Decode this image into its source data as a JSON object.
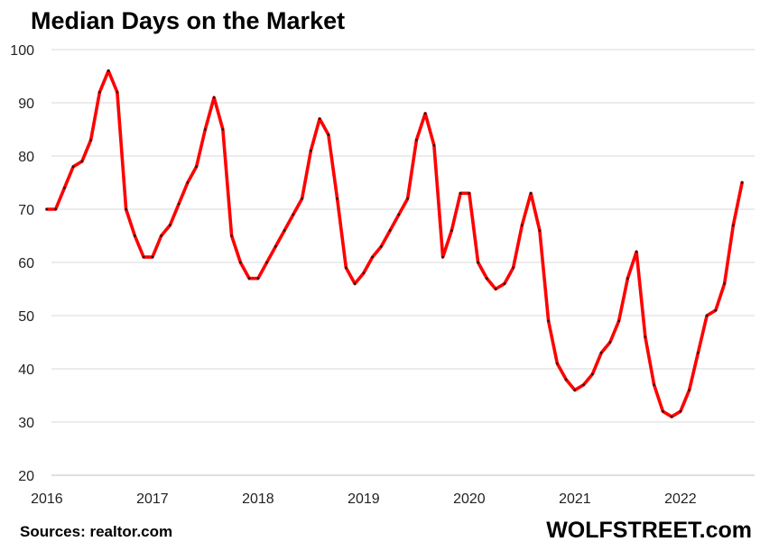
{
  "title": "Median Days on the Market",
  "source": "Sources: realtor.com",
  "brand": "WOLFSTREET.com",
  "colors": {
    "line": "#ff0000",
    "marker": "#1a1a1a",
    "grid": "#d9d9d9",
    "axis": "#bfbfbf"
  },
  "chart_data": {
    "type": "line",
    "title": "Median Days on the Market",
    "xlabel": "",
    "ylabel": "",
    "ylim": [
      20,
      100
    ],
    "yticks": [
      20,
      30,
      40,
      50,
      60,
      70,
      80,
      90,
      100
    ],
    "xticks": [
      "2016",
      "2017",
      "2018",
      "2019",
      "2020",
      "2021",
      "2022"
    ],
    "grid": "horizontal",
    "legend": "none",
    "x": [
      "2016-01",
      "2016-02",
      "2016-03",
      "2016-04",
      "2016-05",
      "2016-06",
      "2016-07",
      "2016-08",
      "2016-09",
      "2016-10",
      "2016-11",
      "2016-12",
      "2017-01",
      "2017-02",
      "2017-03",
      "2017-04",
      "2017-05",
      "2017-06",
      "2017-07",
      "2017-08",
      "2017-09",
      "2017-10",
      "2017-11",
      "2017-12",
      "2018-01",
      "2018-02",
      "2018-03",
      "2018-04",
      "2018-05",
      "2018-06",
      "2018-07",
      "2018-08",
      "2018-09",
      "2018-10",
      "2018-11",
      "2018-12",
      "2019-01",
      "2019-02",
      "2019-03",
      "2019-04",
      "2019-05",
      "2019-06",
      "2019-07",
      "2019-08",
      "2019-09",
      "2019-10",
      "2019-11",
      "2019-12",
      "2020-01",
      "2020-02",
      "2020-03",
      "2020-04",
      "2020-05",
      "2020-06",
      "2020-07",
      "2020-08",
      "2020-09",
      "2020-10",
      "2020-11",
      "2020-12",
      "2021-01",
      "2021-02",
      "2021-03",
      "2021-04",
      "2021-05",
      "2021-06",
      "2021-07",
      "2021-08",
      "2021-09",
      "2021-10",
      "2021-11",
      "2021-12",
      "2022-01",
      "2022-02",
      "2022-03",
      "2022-04",
      "2022-05",
      "2022-06",
      "2022-07",
      "2022-08"
    ],
    "series": [
      {
        "values": [
          70,
          70,
          74,
          78,
          79,
          83,
          92,
          96,
          92,
          70,
          65,
          61,
          61,
          65,
          67,
          71,
          75,
          78,
          85,
          91,
          85,
          65,
          60,
          57,
          57,
          60,
          63,
          66,
          69,
          72,
          81,
          87,
          84,
          72,
          59,
          56,
          58,
          61,
          63,
          66,
          69,
          72,
          83,
          88,
          82,
          61,
          66,
          73,
          73,
          60,
          57,
          55,
          56,
          59,
          67,
          73,
          66,
          49,
          41,
          38,
          36,
          37,
          39,
          43,
          45,
          49,
          57,
          62,
          46,
          37,
          32,
          31,
          32,
          36,
          43,
          50,
          51,
          56,
          67,
          75
        ]
      }
    ]
  }
}
